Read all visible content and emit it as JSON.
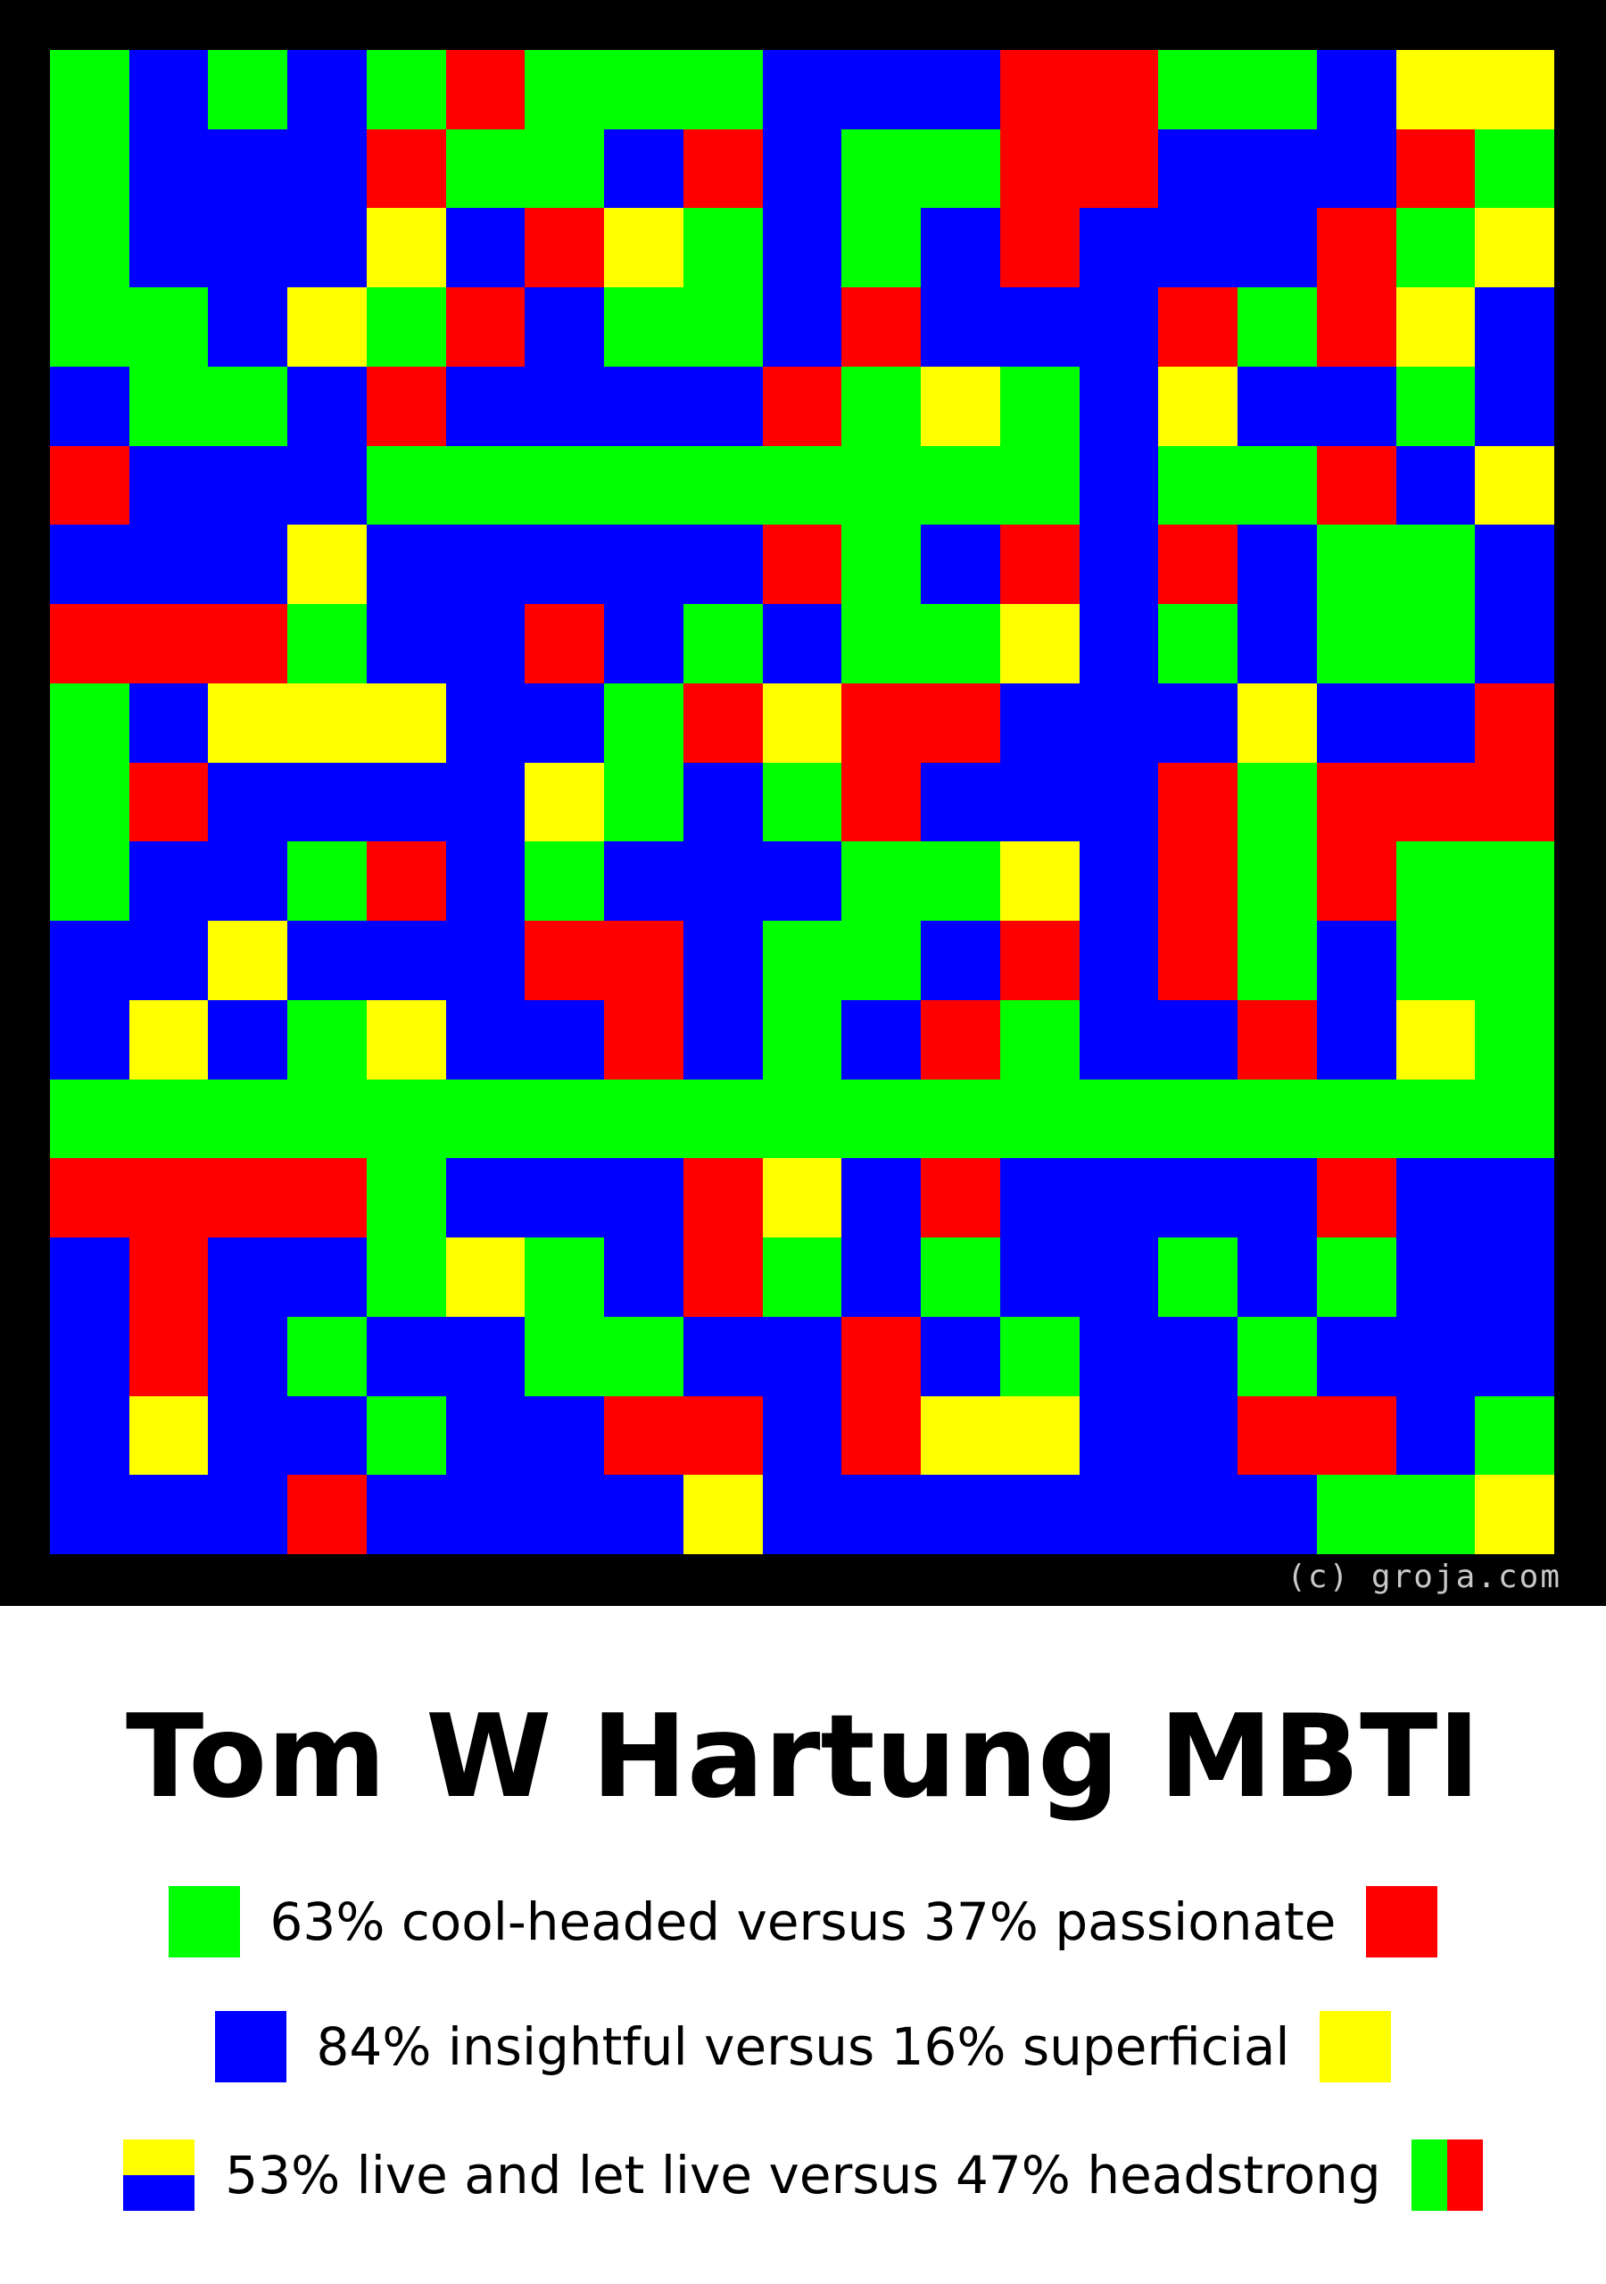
{
  "colors": {
    "green": "#00ff00",
    "red": "#ff0000",
    "blue": "#0000ff",
    "yellow": "#ffff00",
    "background": "#000000"
  },
  "mosaic": {
    "copyright": "(c) groja.com",
    "rows": [
      "GBGBGRGGGBBBRRGGBYY",
      "GBBBRGGBRBGGRRBBBRG",
      "GBBBYBRYGBGBRBBBRGY",
      "GGBYGRBGGBRBBBRGRYB",
      "BGGBRBBBBRGYGBYBBGB",
      "RBBBGGGGGGGGGBGGRBY",
      "BBBYBBBBBRGBRBRBGGB",
      "RRRGBBRBGBGGYBGBGGB",
      "GBYYYBBGRYRRBBBYBBR",
      "GRBBBBYGBGRBBBRGRRR",
      "GBBGRBGBBBGGYBRGRGG",
      "BBYBBBRRBGGBRBRGBGG",
      "BYBGYBBRBGBRGBBRBYG",
      "GGGGGGGGGGGGGGGGGGG",
      "RRRRGBBBRYBRBBBBRBB",
      "BRBBGYGBRGBGBBGBGBB",
      "BRBGBBGGBBRBGBBGBBB",
      "BYBBGBBRRBRYYBBRRBG",
      "BBBRBBBBYBBBBBBBGGY"
    ]
  },
  "title": "Tom W Hartung MBTI",
  "legend": [
    {
      "label": "63% cool-headed versus 37% passionate",
      "left_swatch": "green",
      "right_swatch": "red"
    },
    {
      "label": "84% insightful versus 16% superficial",
      "left_swatch": "blue",
      "right_swatch": "yellow"
    },
    {
      "label": "53% live and let live versus 47% headstrong",
      "left_swatch": "yellow-over-blue",
      "right_swatch": "green-beside-red"
    }
  ]
}
